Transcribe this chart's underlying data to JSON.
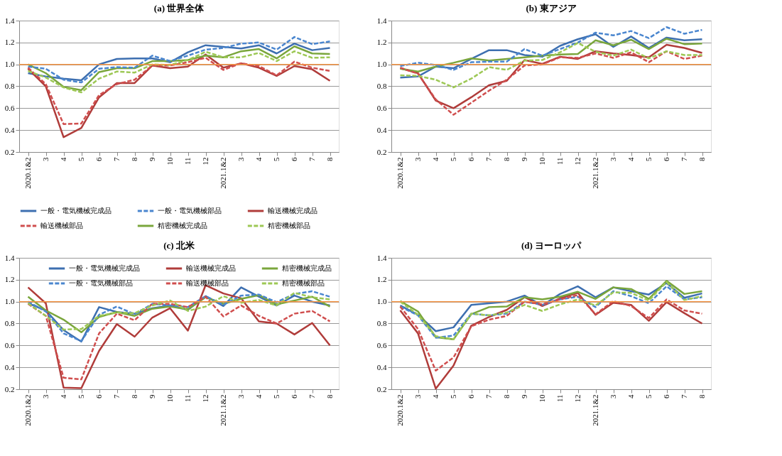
{
  "chart_data": [
    {
      "type": "line",
      "title": "(a) 世界全体",
      "categories": [
        "2020.1&2",
        "3",
        "4",
        "5",
        "6",
        "7",
        "8",
        "9",
        "10",
        "11",
        "12",
        "2021.1&2",
        "3",
        "4",
        "5",
        "6",
        "7",
        "8"
      ],
      "ylim": [
        0.2,
        1.4
      ],
      "yticks": [
        {
          "value": 0.2,
          "label": "0.2"
        },
        {
          "value": 0.4,
          "label": "0.4"
        },
        {
          "value": 0.6,
          "label": "0.6"
        },
        {
          "value": 0.8,
          "label": "0.8"
        },
        {
          "value": 1.0,
          "label": "1.0"
        },
        {
          "value": 1.2,
          "label": "1.2"
        },
        {
          "value": 1.4,
          "label": "1.4"
        }
      ],
      "grid": "y",
      "legend": "bottom",
      "marker": "none",
      "ref_lines": [
        {
          "axis": "y",
          "value": 1.0,
          "color": "#f79646"
        }
      ],
      "series": [
        {
          "name": "一般・電気機械完成品",
          "color": "#3d6fb0",
          "line_style": "solid",
          "values": [
            0.92,
            0.89,
            0.87,
            0.855,
            1.0,
            1.05,
            1.055,
            1.055,
            1.02,
            1.11,
            1.175,
            1.16,
            1.145,
            1.175,
            1.1,
            1.19,
            1.13,
            1.15
          ]
        },
        {
          "name": "輸送機械完成品",
          "color": "#b03c3a",
          "line_style": "solid",
          "values": [
            0.96,
            0.8,
            0.335,
            0.42,
            0.7,
            0.83,
            0.83,
            0.99,
            0.965,
            0.98,
            1.09,
            0.97,
            1.01,
            0.97,
            0.895,
            0.985,
            0.955,
            0.85
          ]
        },
        {
          "name": "精密機械完成品",
          "color": "#7aa63c",
          "line_style": "solid",
          "values": [
            1.0,
            0.92,
            0.795,
            0.765,
            0.93,
            0.965,
            0.965,
            1.03,
            1.03,
            1.04,
            1.08,
            1.065,
            1.12,
            1.14,
            1.055,
            1.165,
            1.1,
            1.095
          ]
        },
        {
          "name": "一般・電気機械部品",
          "color": "#4a86cf",
          "line_style": "dashed",
          "values": [
            0.98,
            0.96,
            0.86,
            0.835,
            0.96,
            0.975,
            0.97,
            1.08,
            1.03,
            1.08,
            1.135,
            1.15,
            1.19,
            1.2,
            1.135,
            1.25,
            1.185,
            1.21
          ]
        },
        {
          "name": "輸送機械部品",
          "color": "#d04e4e",
          "line_style": "dashed",
          "values": [
            0.97,
            0.82,
            0.455,
            0.46,
            0.72,
            0.82,
            0.86,
            0.99,
            0.99,
            1.02,
            1.06,
            0.95,
            1.01,
            0.985,
            0.9,
            1.025,
            0.97,
            0.94
          ]
        },
        {
          "name": "精密機械部品",
          "color": "#9dc855",
          "line_style": "dashed",
          "values": [
            0.94,
            0.88,
            0.79,
            0.745,
            0.87,
            0.935,
            0.925,
            1.0,
            0.995,
            1.04,
            1.115,
            1.065,
            1.065,
            1.105,
            1.03,
            1.12,
            1.06,
            1.065
          ]
        }
      ]
    },
    {
      "type": "line",
      "title": "(b) 東アジア",
      "categories": [
        "2020.1&2",
        "3",
        "4",
        "5",
        "6",
        "7",
        "8",
        "9",
        "10",
        "11",
        "12",
        "2021.1&2",
        "3",
        "4",
        "5",
        "6",
        "7",
        "8"
      ],
      "ylim": [
        0.2,
        1.4
      ],
      "yticks": [
        {
          "value": 0.2,
          "label": "0.2"
        },
        {
          "value": 0.4,
          "label": "0.4"
        },
        {
          "value": 0.6,
          "label": "0.6"
        },
        {
          "value": 0.8,
          "label": "0.8"
        },
        {
          "value": 1.0,
          "label": "1.0"
        },
        {
          "value": 1.2,
          "label": "1.2"
        },
        {
          "value": 1.4,
          "label": "1.4"
        }
      ],
      "grid": "y",
      "legend": "bottom",
      "marker": "none",
      "ref_lines": [
        {
          "axis": "y",
          "value": 1.0,
          "color": "#f79646"
        }
      ],
      "series": [
        {
          "name": "一般・電気機械完成品",
          "color": "#3d6fb0",
          "line_style": "solid",
          "values": [
            0.88,
            0.89,
            0.98,
            0.965,
            1.05,
            1.13,
            1.13,
            1.085,
            1.07,
            1.17,
            1.23,
            1.275,
            1.16,
            1.255,
            1.15,
            1.245,
            1.22,
            1.23
          ]
        },
        {
          "name": "輸送機械完成品",
          "color": "#b03c3a",
          "line_style": "solid",
          "values": [
            0.965,
            0.92,
            0.67,
            0.6,
            0.7,
            0.81,
            0.85,
            1.04,
            1.005,
            1.07,
            1.05,
            1.12,
            1.1,
            1.085,
            1.065,
            1.18,
            1.15,
            1.105
          ]
        },
        {
          "name": "精密機械完成品",
          "color": "#7aa63c",
          "line_style": "solid",
          "values": [
            0.96,
            0.935,
            0.98,
            1.015,
            1.055,
            1.035,
            1.05,
            1.065,
            1.08,
            1.09,
            1.095,
            1.22,
            1.175,
            1.225,
            1.14,
            1.235,
            1.185,
            1.19
          ]
        },
        {
          "name": "一般・電気機械部品",
          "color": "#4a86cf",
          "line_style": "dashed",
          "values": [
            0.985,
            1.015,
            0.995,
            0.95,
            1.02,
            1.025,
            1.025,
            1.14,
            1.08,
            1.14,
            1.2,
            1.29,
            1.265,
            1.305,
            1.24,
            1.34,
            1.28,
            1.315
          ]
        },
        {
          "name": "輸送機械部品",
          "color": "#d04e4e",
          "line_style": "dashed",
          "values": [
            0.97,
            0.915,
            0.68,
            0.54,
            0.65,
            0.76,
            0.86,
            0.99,
            1.0,
            1.065,
            1.06,
            1.1,
            1.06,
            1.11,
            1.02,
            1.12,
            1.05,
            1.08
          ]
        },
        {
          "name": "精密機械部品",
          "color": "#9dc855",
          "line_style": "dashed",
          "values": [
            0.9,
            0.895,
            0.86,
            0.79,
            0.87,
            0.975,
            0.95,
            1.035,
            1.04,
            1.11,
            1.195,
            1.115,
            1.08,
            1.135,
            1.055,
            1.12,
            1.085,
            1.085
          ]
        }
      ]
    },
    {
      "type": "line",
      "title": "(c) 北米",
      "categories": [
        "2020.1&2",
        "3",
        "4",
        "5",
        "6",
        "7",
        "8",
        "9",
        "10",
        "11",
        "12",
        "2021.1&2",
        "3",
        "4",
        "5",
        "6",
        "7",
        "8"
      ],
      "ylim": [
        0.2,
        1.4
      ],
      "yticks": [
        {
          "value": 0.2,
          "label": "0.2"
        },
        {
          "value": 0.4,
          "label": "0.4"
        },
        {
          "value": 0.6,
          "label": "0.6"
        },
        {
          "value": 0.8,
          "label": "0.8"
        },
        {
          "value": 1.0,
          "label": "1.0"
        },
        {
          "value": 1.2,
          "label": "1.2"
        },
        {
          "value": 1.4,
          "label": "1.4"
        }
      ],
      "grid": "y",
      "legend": "top",
      "marker": "none",
      "ref_lines": [
        {
          "axis": "y",
          "value": 1.0,
          "color": "#f79646"
        }
      ],
      "series": [
        {
          "name": "一般・電気機械完成品",
          "color": "#3d6fb0",
          "line_style": "solid",
          "values": [
            0.985,
            0.92,
            0.74,
            0.635,
            0.95,
            0.905,
            0.89,
            0.94,
            0.965,
            0.925,
            1.05,
            0.96,
            1.13,
            1.045,
            0.965,
            1.055,
            1.0,
            0.965
          ]
        },
        {
          "name": "輸送機械完成品",
          "color": "#b03c3a",
          "line_style": "solid",
          "values": [
            1.13,
            0.985,
            0.215,
            0.21,
            0.55,
            0.795,
            0.68,
            0.855,
            0.94,
            0.735,
            1.15,
            1.075,
            1.03,
            0.82,
            0.8,
            0.7,
            0.805,
            0.6
          ]
        },
        {
          "name": "精密機械完成品",
          "color": "#7aa63c",
          "line_style": "solid",
          "values": [
            1.045,
            0.92,
            0.835,
            0.72,
            0.86,
            0.905,
            0.87,
            0.935,
            0.955,
            0.93,
            1.04,
            0.98,
            1.025,
            1.06,
            0.975,
            1.01,
            1.045,
            0.955
          ]
        },
        {
          "name": "一般・電気機械部品",
          "color": "#4a86cf",
          "line_style": "dashed",
          "values": [
            1.0,
            0.91,
            0.71,
            0.64,
            0.88,
            0.955,
            0.885,
            0.98,
            0.965,
            0.95,
            1.05,
            0.97,
            1.055,
            1.065,
            0.995,
            1.07,
            1.095,
            1.045
          ]
        },
        {
          "name": "輸送機械部品",
          "color": "#d04e4e",
          "line_style": "dashed",
          "values": [
            0.98,
            0.87,
            0.305,
            0.29,
            0.71,
            0.89,
            0.83,
            0.98,
            0.98,
            0.95,
            1.045,
            0.865,
            0.965,
            0.87,
            0.8,
            0.89,
            0.915,
            0.82
          ]
        },
        {
          "name": "精密機械部品",
          "color": "#9dc855",
          "line_style": "dashed",
          "values": [
            0.985,
            0.87,
            0.745,
            0.75,
            0.87,
            0.9,
            0.895,
            0.965,
            1.01,
            0.915,
            0.955,
            1.05,
            0.99,
            1.015,
            0.965,
            1.08,
            1.04,
            1.02
          ]
        }
      ]
    },
    {
      "type": "line",
      "title": "(d) ヨーロッパ",
      "categories": [
        "2020.1&2",
        "3",
        "4",
        "5",
        "6",
        "7",
        "8",
        "9",
        "10",
        "11",
        "12",
        "2021.1&2",
        "3",
        "4",
        "5",
        "6",
        "7",
        "8"
      ],
      "ylim": [
        0.2,
        1.4
      ],
      "yticks": [
        {
          "value": 0.2,
          "label": "0.2"
        },
        {
          "value": 0.4,
          "label": "0.4"
        },
        {
          "value": 0.6,
          "label": "0.6"
        },
        {
          "value": 0.8,
          "label": "0.8"
        },
        {
          "value": 1.0,
          "label": "1.0"
        },
        {
          "value": 1.2,
          "label": "1.2"
        },
        {
          "value": 1.4,
          "label": "1.4"
        }
      ],
      "grid": "y",
      "legend": "top",
      "marker": "none",
      "ref_lines": [
        {
          "axis": "y",
          "value": 1.0,
          "color": "#f79646"
        }
      ],
      "series": [
        {
          "name": "一般・電気機械完成品",
          "color": "#3d6fb0",
          "line_style": "solid",
          "values": [
            0.965,
            0.88,
            0.73,
            0.765,
            0.97,
            0.985,
            1.0,
            1.055,
            0.965,
            1.07,
            1.14,
            1.04,
            1.13,
            1.095,
            1.065,
            1.17,
            1.035,
            1.075
          ]
        },
        {
          "name": "輸送機械完成品",
          "color": "#b03c3a",
          "line_style": "solid",
          "values": [
            0.92,
            0.71,
            0.205,
            0.415,
            0.78,
            0.86,
            0.925,
            1.04,
            0.96,
            1.03,
            1.08,
            0.88,
            0.99,
            0.97,
            0.825,
            0.995,
            0.895,
            0.8
          ]
        },
        {
          "name": "精密機械完成品",
          "color": "#7aa63c",
          "line_style": "solid",
          "values": [
            1.005,
            0.91,
            0.675,
            0.655,
            0.885,
            0.95,
            0.955,
            1.04,
            1.02,
            1.045,
            1.09,
            1.025,
            1.13,
            1.115,
            1.025,
            1.19,
            1.07,
            1.095
          ]
        },
        {
          "name": "一般・電気機械部品",
          "color": "#4a86cf",
          "line_style": "dashed",
          "values": [
            0.955,
            0.875,
            0.67,
            0.69,
            0.89,
            0.875,
            0.89,
            1.0,
            0.97,
            1.02,
            1.045,
            0.95,
            1.095,
            1.05,
            0.985,
            1.14,
            1.02,
            1.04
          ]
        },
        {
          "name": "輸送機械部品",
          "color": "#d04e4e",
          "line_style": "dashed",
          "values": [
            0.955,
            0.75,
            0.37,
            0.49,
            0.775,
            0.835,
            0.87,
            1.0,
            0.975,
            1.02,
            1.06,
            0.885,
            1.005,
            0.96,
            0.85,
            1.02,
            0.92,
            0.89
          ]
        },
        {
          "name": "精密機械部品",
          "color": "#9dc855",
          "line_style": "dashed",
          "values": [
            1.0,
            0.88,
            0.685,
            0.655,
            0.89,
            0.875,
            0.9,
            0.97,
            0.915,
            0.975,
            1.02,
            0.965,
            1.085,
            1.08,
            1.01,
            1.18,
            1.015,
            1.05
          ]
        }
      ]
    }
  ]
}
